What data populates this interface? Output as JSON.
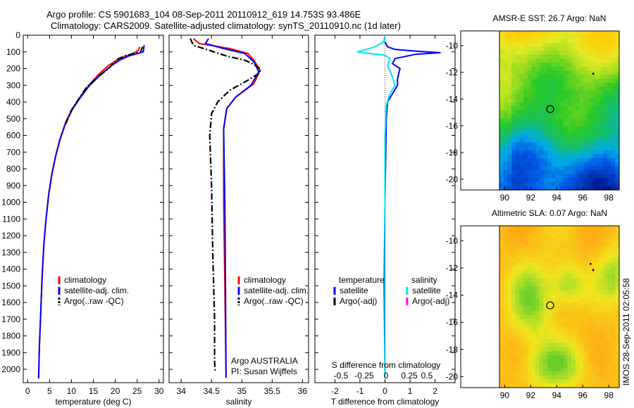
{
  "title_line1": "Argo profile: CS 5901683_104 08-Sep-2011 20110912_619 14.753S 93.486E",
  "title_line2": "Climatology: CARS2009. Satellite-adjusted climatology: synTS_20110910.nc (1d later)",
  "timestamp": "IMOS 28-Sep-2011 02:05:58",
  "colors": {
    "climatology": "#ff0000",
    "satellite": "#0000ff",
    "argo": "#000000",
    "salinity_sat": "#00e5ee",
    "salinity_argo": "#ff00ff"
  },
  "chart_data": [
    {
      "type": "line",
      "id": "temperature",
      "xlabel": "temperature (deg C)",
      "xlim": [
        -1,
        31
      ],
      "ylim": [
        2080,
        0
      ],
      "xticks": [
        0,
        5,
        10,
        15,
        20,
        25,
        30
      ],
      "yticks": [
        0,
        100,
        200,
        300,
        400,
        500,
        600,
        700,
        800,
        900,
        1000,
        1100,
        1200,
        1300,
        1400,
        1500,
        1600,
        1700,
        1800,
        1900,
        2000
      ],
      "legend": [
        "climatology",
        "satellite-adj. clim.",
        "Argo(..raw -QC)"
      ],
      "series": [
        {
          "name": "climatology",
          "color": "#ff0000",
          "style": "solid",
          "points": [
            [
              25.6,
              70
            ],
            [
              25.3,
              90
            ],
            [
              24,
              110
            ],
            [
              21,
              140
            ],
            [
              18.5,
              180
            ],
            [
              16,
              240
            ],
            [
              14,
              300
            ],
            [
              12,
              370
            ],
            [
              10.2,
              440
            ],
            [
              8.7,
              520
            ],
            [
              7.4,
              620
            ],
            [
              6.4,
              720
            ],
            [
              5.6,
              820
            ],
            [
              4.8,
              950
            ],
            [
              4.2,
              1100
            ],
            [
              3.7,
              1250
            ],
            [
              3.3,
              1450
            ],
            [
              3,
              1650
            ],
            [
              2.7,
              1850
            ],
            [
              2.5,
              2050
            ]
          ]
        },
        {
          "name": "satellite-adj. clim.",
          "color": "#0000ff",
          "style": "solid",
          "points": [
            [
              26.6,
              60
            ],
            [
              26.4,
              100
            ],
            [
              23,
              125
            ],
            [
              21,
              150
            ],
            [
              19,
              185
            ],
            [
              16.5,
              240
            ],
            [
              14,
              305
            ],
            [
              12,
              375
            ],
            [
              10.2,
              445
            ],
            [
              8.7,
              525
            ],
            [
              7.4,
              625
            ],
            [
              6.4,
              725
            ],
            [
              5.6,
              825
            ],
            [
              4.8,
              955
            ],
            [
              4.2,
              1105
            ],
            [
              3.7,
              1255
            ],
            [
              3.3,
              1455
            ],
            [
              3,
              1655
            ],
            [
              2.7,
              1855
            ],
            [
              2.5,
              2055
            ]
          ]
        },
        {
          "name": "Argo(..raw -QC)",
          "color": "#000000",
          "style": "dashdot",
          "points": [
            [
              26.2,
              70
            ],
            [
              25.8,
              100
            ],
            [
              22,
              125
            ],
            [
              20.5,
              145
            ],
            [
              19.5,
              170
            ],
            [
              18.5,
              200
            ],
            [
              16,
              250
            ],
            [
              13.5,
              310
            ],
            [
              11.7,
              380
            ],
            [
              10,
              450
            ],
            [
              8.7,
              530
            ]
          ]
        }
      ]
    },
    {
      "type": "line",
      "id": "salinity",
      "xlabel": "salinity",
      "xlim": [
        33.8,
        36.1
      ],
      "ylim": [
        2080,
        0
      ],
      "xticks": [
        34,
        34.5,
        35,
        35.5,
        36
      ],
      "legend": [
        "climatology",
        "satellite-adj. clim.",
        "Argo(..raw -QC)"
      ],
      "annotation_line1": "Argo AUSTRALIA",
      "annotation_line2": "PI: Susan Wijffels",
      "series": [
        {
          "name": "climatology",
          "color": "#ff0000",
          "style": "solid",
          "points": [
            [
              34.2,
              20
            ],
            [
              34.3,
              50
            ],
            [
              34.8,
              80
            ],
            [
              35.1,
              110
            ],
            [
              35.2,
              150
            ],
            [
              35.3,
              210
            ],
            [
              35.2,
              290
            ],
            [
              34.9,
              370
            ],
            [
              34.75,
              440
            ],
            [
              34.7,
              560
            ],
            [
              34.7,
              1000
            ],
            [
              34.72,
              1500
            ],
            [
              34.74,
              2050
            ]
          ]
        },
        {
          "name": "satellite-adj. clim.",
          "color": "#0000ff",
          "style": "solid",
          "points": [
            [
              34.45,
              20
            ],
            [
              34.4,
              50
            ],
            [
              34.7,
              80
            ],
            [
              35.05,
              110
            ],
            [
              35.2,
              160
            ],
            [
              35.28,
              220
            ],
            [
              35.15,
              300
            ],
            [
              34.9,
              370
            ],
            [
              34.75,
              440
            ],
            [
              34.7,
              560
            ],
            [
              34.72,
              1000
            ],
            [
              34.73,
              1500
            ],
            [
              34.74,
              2050
            ]
          ]
        },
        {
          "name": "Argo(..raw -QC)",
          "color": "#000000",
          "style": "dashdot",
          "points": [
            [
              34.15,
              20
            ],
            [
              34.2,
              60
            ],
            [
              34.5,
              95
            ],
            [
              34.75,
              125
            ],
            [
              35.05,
              150
            ],
            [
              35.2,
              175
            ],
            [
              35.3,
              200
            ],
            [
              35.3,
              225
            ],
            [
              35.1,
              270
            ],
            [
              34.8,
              330
            ],
            [
              34.6,
              400
            ],
            [
              34.5,
              470
            ],
            [
              34.47,
              600
            ],
            [
              34.5,
              900
            ],
            [
              34.52,
              1300
            ],
            [
              34.55,
              1700
            ],
            [
              34.55,
              1950
            ],
            [
              34.56,
              2010
            ]
          ]
        }
      ]
    },
    {
      "type": "line",
      "id": "difference",
      "xlabel_top": "S difference from climatology",
      "xlabel": "T difference from climatology",
      "xlim": [
        -2.8,
        2.8
      ],
      "ylim": [
        2080,
        0
      ],
      "xticks": [
        -2,
        -1,
        0,
        1,
        2
      ],
      "top_ticks": [
        "-0.5",
        "-0.25",
        "0",
        "0.25",
        "0.5"
      ],
      "legend_headers": [
        "temperature",
        "salinity"
      ],
      "legend": [
        "satellite",
        "Argo(-adj)",
        "satellite",
        "Argo(-adj)"
      ],
      "series": [
        {
          "name": "satellite",
          "color": "#0000ff",
          "style": "solid",
          "points": [
            [
              0,
              40
            ],
            [
              0.1,
              70
            ],
            [
              0.4,
              85
            ],
            [
              1.2,
              95
            ],
            [
              2.2,
              105
            ],
            [
              1.2,
              115
            ],
            [
              0.4,
              140
            ],
            [
              0.3,
              170
            ],
            [
              0.6,
              200
            ],
            [
              0.5,
              260
            ],
            [
              0.5,
              300
            ],
            [
              0.3,
              350
            ],
            [
              0.1,
              400
            ],
            [
              0.05,
              500
            ],
            [
              0,
              1000
            ],
            [
              -0.03,
              1500
            ],
            [
              0,
              2050
            ]
          ]
        },
        {
          "name": "satellite",
          "color": "#00e5ee",
          "style": "solid",
          "points": [
            [
              0,
              0
            ],
            [
              -0.05,
              40
            ],
            [
              -0.4,
              70
            ],
            [
              -1.1,
              100
            ],
            [
              -0.6,
              110
            ],
            [
              0,
              120
            ],
            [
              0.2,
              140
            ],
            [
              0.1,
              180
            ],
            [
              0.3,
              250
            ],
            [
              0.4,
              300
            ],
            [
              0.2,
              350
            ],
            [
              0.05,
              420
            ],
            [
              0,
              600
            ],
            [
              0,
              2050
            ]
          ]
        }
      ]
    },
    {
      "type": "heatmap",
      "id": "sst",
      "title": "AMSR-E SST: 26.7 Argo: NaN",
      "xticks": [
        90,
        92,
        94,
        96,
        98
      ],
      "yticks": [
        -10,
        -12,
        -14,
        -16,
        -18,
        -20
      ],
      "xlim": [
        89.6,
        98.8
      ],
      "ylim": [
        -20.8,
        -8.9
      ],
      "marker": [
        93.5,
        -14.75
      ],
      "dots": [
        [
          96.8,
          -12.1
        ]
      ]
    },
    {
      "type": "heatmap",
      "id": "sla",
      "title": "Altimetric SLA: 0.07 Argo: NaN",
      "xticks": [
        90,
        92,
        94,
        96,
        98
      ],
      "yticks": [
        -10,
        -12,
        -14,
        -16,
        -18,
        -20
      ],
      "xlim": [
        89.6,
        98.8
      ],
      "ylim": [
        -20.8,
        -8.9
      ],
      "marker": [
        93.5,
        -14.75
      ],
      "dots": [
        [
          96.8,
          -12.15
        ],
        [
          96.6,
          -11.7
        ]
      ]
    }
  ]
}
